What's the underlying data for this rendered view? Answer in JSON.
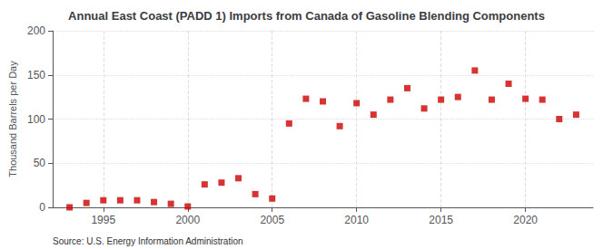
{
  "chart_data": {
    "type": "scatter",
    "title": "Annual East Coast (PADD 1) Imports from Canada of Gasoline Blending Components",
    "ylabel": "Thousand Barrels per Day",
    "annotation": "Source: U.S. Energy Information Administration",
    "x": [
      1993,
      1994,
      1995,
      1996,
      1997,
      1998,
      1999,
      2000,
      2001,
      2002,
      2003,
      2004,
      2005,
      2006,
      2007,
      2008,
      2009,
      2010,
      2011,
      2012,
      2013,
      2014,
      2015,
      2016,
      2017,
      2018,
      2019,
      2020,
      2021,
      2022,
      2023
    ],
    "values": [
      0,
      5,
      8,
      8,
      8,
      6,
      4,
      1,
      26,
      28,
      33,
      15,
      10,
      95,
      123,
      120,
      92,
      118,
      105,
      122,
      135,
      112,
      122,
      125,
      155,
      122,
      140,
      123,
      122,
      100,
      105
    ],
    "color": "#cc0000",
    "marker": "square",
    "xlim": [
      1992,
      2024
    ],
    "xticks": [
      1995,
      2000,
      2005,
      2010,
      2015,
      2020
    ],
    "ylim": [
      0,
      200
    ],
    "yticks": [
      0,
      50,
      100,
      150,
      200
    ],
    "grid": true
  }
}
